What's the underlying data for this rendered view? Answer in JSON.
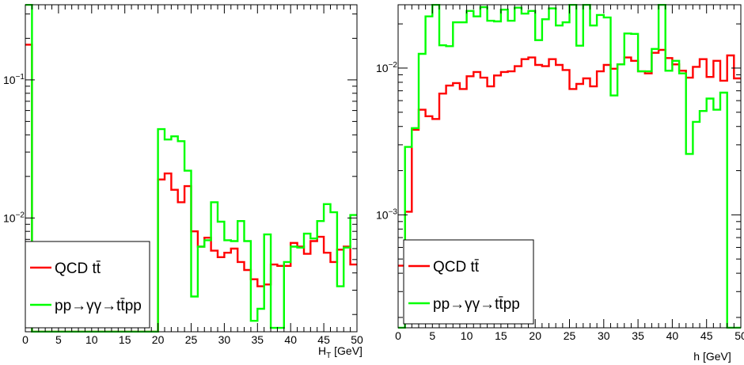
{
  "colors": {
    "qcd": "#ff0000",
    "gg": "#00ff00",
    "frame": "#000000"
  },
  "chart_data": [
    {
      "type": "line",
      "step": true,
      "xlabel": "H_T [GeV]",
      "xlim": [
        0,
        50
      ],
      "ylim_log": [
        0.0015,
        0.35
      ],
      "log_y": true,
      "x_tick_labels": [
        "0",
        "5",
        "10",
        "15",
        "20",
        "25",
        "30",
        "35",
        "40",
        "45",
        "50"
      ],
      "y_tick_labels": [
        {
          "value": 0.1,
          "label": "10",
          "exp": "−1"
        },
        {
          "value": 0.01,
          "label": "10",
          "exp": "−2"
        }
      ],
      "legend_position": "bottom-left",
      "series": [
        {
          "name": "QCD tt̄",
          "color_key": "qcd",
          "values": [
            0.18,
            0.0002,
            0.0002,
            0.0002,
            0.0002,
            0.0002,
            0.0002,
            0.0002,
            0.0002,
            0.0002,
            0.0002,
            0.0002,
            0.0002,
            0.0002,
            0.0002,
            0.0002,
            0.0002,
            0.0002,
            0.0002,
            0.0002,
            0.019,
            0.021,
            0.016,
            0.013,
            0.017,
            0.008,
            0.0062,
            0.0072,
            0.0058,
            0.0052,
            0.0056,
            0.006,
            0.0048,
            0.0042,
            0.0036,
            0.0032,
            0.0033,
            0.0046,
            0.0045,
            0.0045,
            0.0066,
            0.0062,
            0.0055,
            0.0068,
            0.0073,
            0.0056,
            0.0048,
            0.0059,
            0.0062,
            0.0046
          ]
        },
        {
          "name": "pp→γγ→tt̄pp",
          "color_key": "gg",
          "values": [
            0.35,
            0.0002,
            0.0002,
            0.0002,
            0.0002,
            0.0002,
            0.0002,
            0.0002,
            0.0002,
            0.0002,
            0.0002,
            0.0002,
            0.0002,
            0.0002,
            0.0002,
            0.0002,
            0.0002,
            0.0002,
            0.0002,
            0.0002,
            0.044,
            0.037,
            0.039,
            0.036,
            0.022,
            0.0027,
            0.0062,
            0.0069,
            0.013,
            0.0094,
            0.0069,
            0.0068,
            0.0095,
            0.0068,
            0.0018,
            0.0022,
            0.0076,
            0.0016,
            0.0016,
            0.0048,
            0.0062,
            0.0061,
            0.0077,
            0.0071,
            0.0095,
            0.0126,
            0.011,
            0.0032,
            0.0061,
            0.0105
          ]
        }
      ]
    },
    {
      "type": "line",
      "step": true,
      "xlabel": "h [GeV]",
      "xlim": [
        0,
        50
      ],
      "ylim_log": [
        0.00017,
        0.027
      ],
      "log_y": true,
      "x_tick_labels": [
        "0",
        "5",
        "10",
        "15",
        "20",
        "25",
        "30",
        "35",
        "40",
        "45",
        "50"
      ],
      "y_tick_labels": [
        {
          "value": 0.01,
          "label": "10",
          "exp": "−2"
        },
        {
          "value": 0.001,
          "label": "10",
          "exp": "−3"
        }
      ],
      "legend_position": "bottom-left",
      "series": [
        {
          "name": "QCD tt̄",
          "color_key": "qcd",
          "values": [
            0.00045,
            0.00105,
            0.0038,
            0.0052,
            0.0047,
            0.0045,
            0.0067,
            0.0076,
            0.0079,
            0.0072,
            0.0088,
            0.0094,
            0.0086,
            0.0075,
            0.0089,
            0.0094,
            0.0095,
            0.0103,
            0.0115,
            0.0118,
            0.0105,
            0.0103,
            0.0115,
            0.0105,
            0.0097,
            0.0072,
            0.0078,
            0.0085,
            0.0075,
            0.0095,
            0.0105,
            0.0099,
            0.0106,
            0.0118,
            0.0112,
            0.0095,
            0.0092,
            0.0127,
            0.0133,
            0.0117,
            0.0106,
            0.0096,
            0.0086,
            0.0102,
            0.0115,
            0.0087,
            0.0112,
            0.0082,
            0.0122,
            0.0085
          ]
        },
        {
          "name": "pp→γγ→tt̄pp",
          "color_key": "gg",
          "values": [
            0.0001,
            0.0029,
            0.0039,
            0.0125,
            0.0225,
            0.027,
            0.0143,
            0.0141,
            0.0205,
            0.0205,
            0.0245,
            0.0225,
            0.026,
            0.021,
            0.0208,
            0.025,
            0.021,
            0.0258,
            0.0235,
            0.0245,
            0.0155,
            0.0215,
            0.0255,
            0.0195,
            0.0205,
            0.0275,
            0.0142,
            0.0275,
            0.0195,
            0.023,
            0.0221,
            0.0065,
            0.0106,
            0.0172,
            0.0171,
            0.0095,
            0.0095,
            0.0135,
            0.029,
            0.0096,
            0.0112,
            0.0092,
            0.0026,
            0.0043,
            0.0051,
            0.0062,
            0.0052,
            0.0068,
            0.0001,
            0.0001
          ]
        }
      ]
    }
  ]
}
